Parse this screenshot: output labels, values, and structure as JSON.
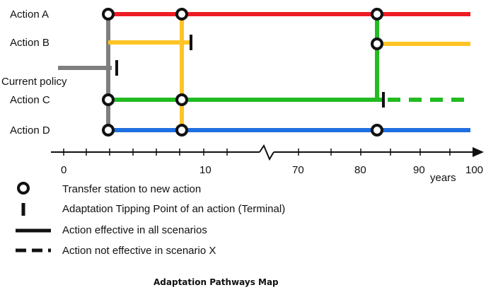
{
  "actions": [
    {
      "key": "a",
      "label": "Action A",
      "color": "#ee1c25"
    },
    {
      "key": "b",
      "label": "Action B",
      "color": "#ffc425"
    },
    {
      "key": "current",
      "label": "Current policy",
      "color": "#7f7f7f"
    },
    {
      "key": "c",
      "label": "Action C",
      "color": "#22bb22"
    },
    {
      "key": "d",
      "label": "Action D",
      "color": "#1f6fe0"
    }
  ],
  "axis": {
    "ticks": [
      "0",
      "10",
      "70",
      "80",
      "90",
      "100"
    ],
    "unit_label": "years"
  },
  "legend": [
    {
      "symbol": "transfer-station",
      "text": "Transfer station to new action"
    },
    {
      "symbol": "tipping-point",
      "text": "Adaptation Tipping Point of an action (Terminal)"
    },
    {
      "symbol": "solid-line",
      "text": "Action effective in all scenarios"
    },
    {
      "symbol": "dashed-line",
      "text": "Action not effective in scenario X"
    }
  ],
  "caption": "Adaptation Pathways Map"
}
